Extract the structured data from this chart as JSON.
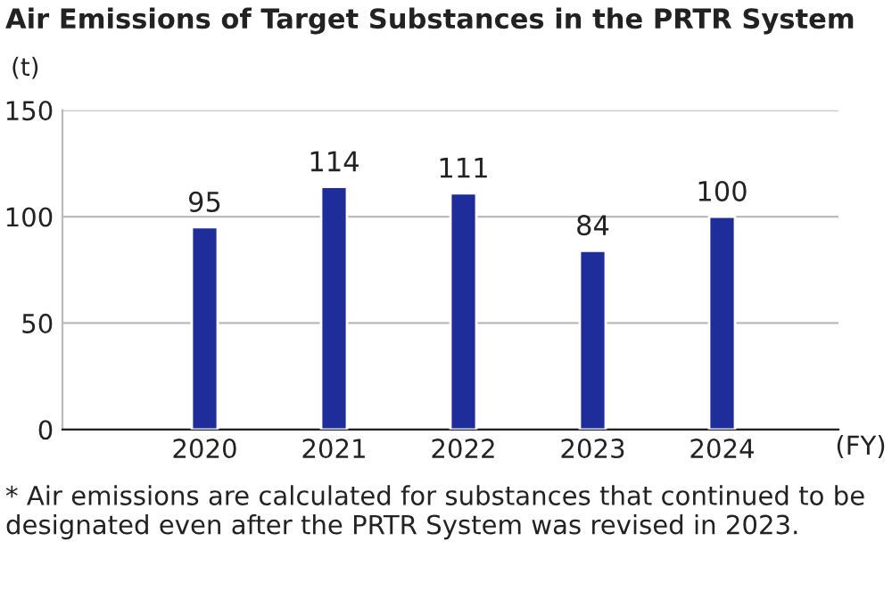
{
  "chart_data": {
    "type": "bar",
    "title": "Air Emissions of Target Substances in the PRTR System",
    "ylabel": "(t)",
    "xlabel": "(FY)",
    "categories": [
      "2020",
      "2021",
      "2022",
      "2023",
      "2024"
    ],
    "values": [
      95,
      114,
      111,
      84,
      100
    ],
    "color": "#1f2d9b",
    "ylim": [
      0,
      150
    ],
    "yticks": [
      0,
      50,
      100,
      150
    ],
    "grid": "y",
    "data_labels": true,
    "annotations": [
      "* Air emissions are calculated for substances that continued to be designated even after the PRTR System was revised in 2023."
    ]
  }
}
